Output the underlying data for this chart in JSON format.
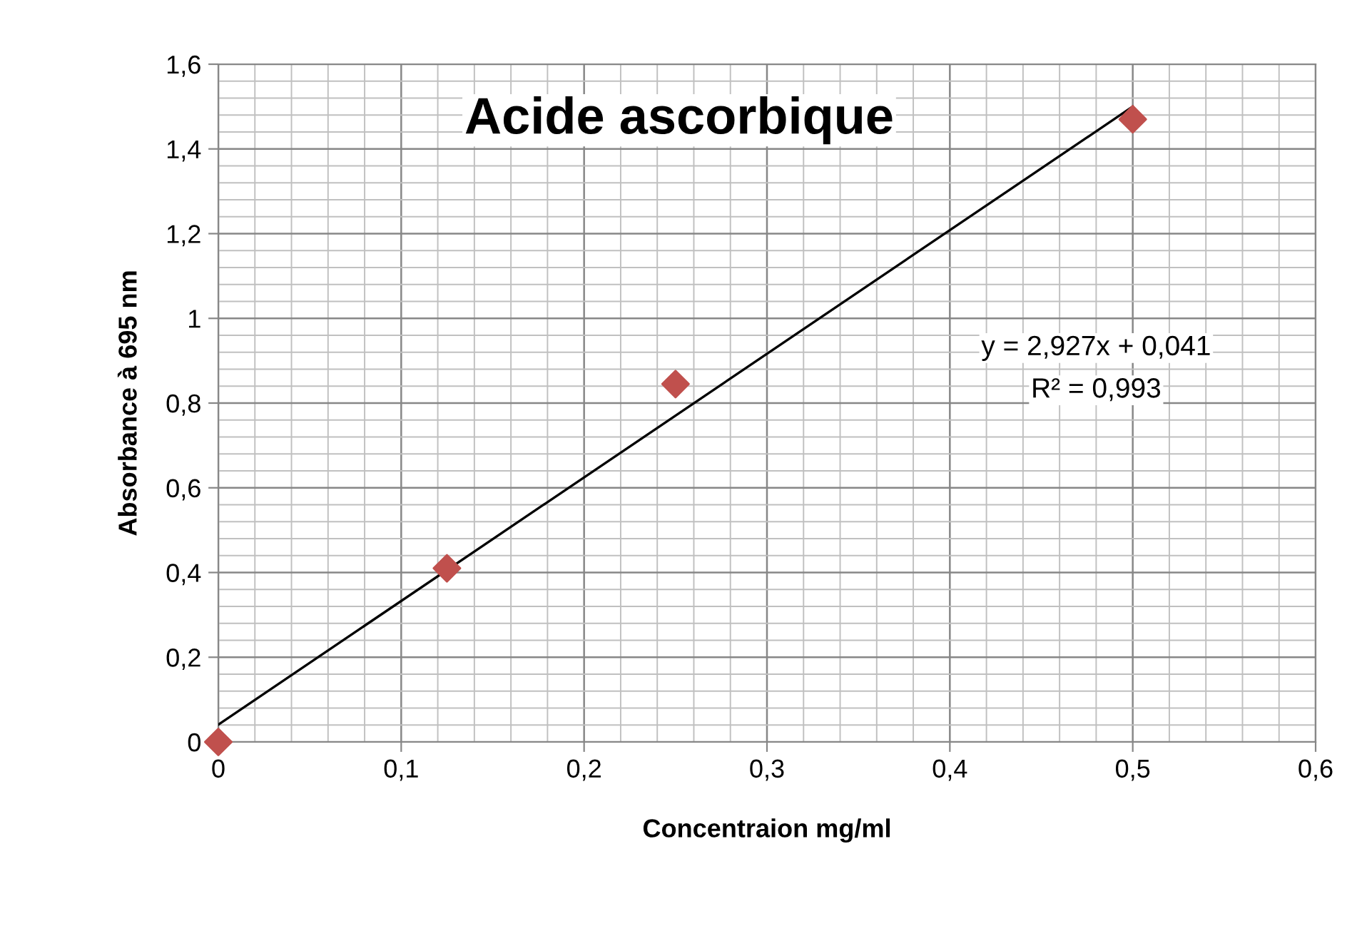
{
  "chart_data": {
    "type": "scatter",
    "title": "Acide ascorbique",
    "xlabel": "Concentraion mg/ml",
    "ylabel": "Absorbance à 695 nm",
    "series": [
      {
        "color": "#c0504d",
        "marker": "diamond",
        "x": [
          0,
          0.125,
          0.25,
          0.5
        ],
        "values": [
          0,
          0.41,
          0.845,
          1.47
        ]
      },
      {
        "type": "line",
        "color": "#000000",
        "marker": "none",
        "line_style": "solid",
        "x": [
          0,
          0.5
        ],
        "values": [
          0.041,
          1.5
        ]
      }
    ],
    "annotations": [
      "y = 2,927x + 0,041",
      "R² = 0,993"
    ],
    "xlim": [
      0,
      0.6
    ],
    "ylim": [
      0,
      1.6
    ],
    "xticks": [
      0,
      {
        "value": 0.1,
        "label": "0,1"
      },
      {
        "value": 0.2,
        "label": "0,2"
      },
      {
        "value": 0.3,
        "label": "0,3"
      },
      {
        "value": 0.4,
        "label": "0,4"
      },
      {
        "value": 0.5,
        "label": "0,5"
      },
      {
        "value": 0.6,
        "label": "0,6"
      }
    ],
    "yticks": [
      0,
      {
        "value": 0.2,
        "label": "0,2"
      },
      {
        "value": 0.4,
        "label": "0,4"
      },
      {
        "value": 0.6,
        "label": "0,6"
      },
      {
        "value": 0.8,
        "label": "0,8"
      },
      1,
      {
        "value": 1.2,
        "label": "1,2"
      },
      {
        "value": 1.4,
        "label": "1,4"
      },
      {
        "value": 1.6,
        "label": "1,6"
      }
    ],
    "grid": true,
    "legend": false
  }
}
